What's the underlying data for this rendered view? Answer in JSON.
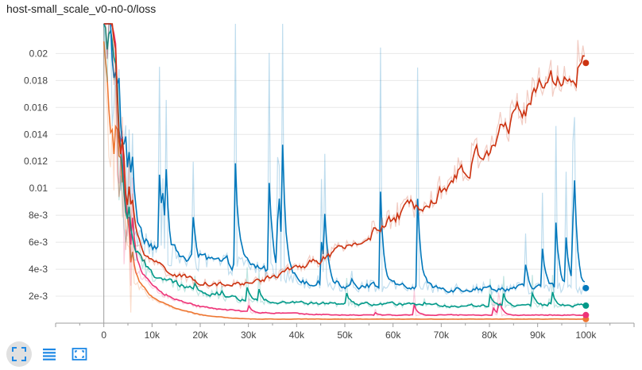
{
  "panel": {
    "title": "host-small_scale_v0-n0-0/loss"
  },
  "toolbar": {
    "buttons": [
      {
        "name": "fit-domain",
        "icon": "fit-to-data-icon",
        "active": true
      },
      {
        "name": "toggle-log-scale",
        "icon": "list-lines-icon",
        "active": false
      },
      {
        "name": "reset-zoom",
        "icon": "crop-expand-icon",
        "active": false
      }
    ],
    "accent_color": "#1e88e5"
  },
  "chart_data": {
    "type": "line",
    "xlabel": "",
    "ylabel": "",
    "xlim": [
      -10000,
      110000
    ],
    "ylim": [
      0,
      0.0222
    ],
    "x_ticks": [
      0,
      10000,
      20000,
      30000,
      40000,
      50000,
      60000,
      70000,
      80000,
      90000,
      100000
    ],
    "x_tick_labels": [
      "0",
      "10k",
      "20k",
      "30k",
      "40k",
      "50k",
      "60k",
      "70k",
      "80k",
      "90k",
      "100k"
    ],
    "y_ticks": [
      0.002,
      0.004,
      0.006,
      0.008,
      0.01,
      0.012,
      0.014,
      0.016,
      0.018,
      0.02
    ],
    "y_tick_labels": [
      "2e-3",
      "4e-3",
      "6e-3",
      "8e-3",
      "0.01",
      "0.012",
      "0.014",
      "0.016",
      "0.018",
      "0.02"
    ],
    "grid": true,
    "smoothing": true,
    "series": [
      {
        "color": "#0077bb",
        "x": [
          0,
          5000,
          10000,
          15000,
          20000,
          25000,
          30000,
          35000,
          40000,
          50000,
          60000,
          70000,
          80000,
          90000,
          100000
        ],
        "y": [
          0.022,
          0.0075,
          0.0058,
          0.0049,
          0.0046,
          0.0044,
          0.0043,
          0.0038,
          0.0032,
          0.0028,
          0.0027,
          0.0026,
          0.0026,
          0.0026,
          0.0026
        ]
      },
      {
        "color": "#cc3311",
        "x": [
          0,
          5000,
          10000,
          15000,
          20000,
          25000,
          30000,
          35000,
          40000,
          45000,
          50000,
          55000,
          60000,
          65000,
          70000,
          75000,
          80000,
          85000,
          90000,
          95000,
          100000
        ],
        "y": [
          0.022,
          0.0065,
          0.0045,
          0.0035,
          0.003,
          0.0028,
          0.003,
          0.0035,
          0.0042,
          0.0048,
          0.0056,
          0.0066,
          0.0078,
          0.009,
          0.0102,
          0.0115,
          0.0135,
          0.0152,
          0.0175,
          0.0185,
          0.0193
        ]
      },
      {
        "color": "#009988",
        "x": [
          0,
          5000,
          10000,
          15000,
          20000,
          25000,
          30000,
          40000,
          50000,
          60000,
          70000,
          80000,
          90000,
          100000
        ],
        "y": [
          0.02,
          0.0055,
          0.0035,
          0.0028,
          0.0023,
          0.0019,
          0.0017,
          0.0015,
          0.0014,
          0.0014,
          0.0013,
          0.0013,
          0.0013,
          0.0013
        ]
      },
      {
        "color": "#ee3377",
        "x": [
          0,
          5000,
          10000,
          15000,
          20000,
          25000,
          30000,
          40000,
          50000,
          60000,
          70000,
          80000,
          90000,
          100000
        ],
        "y": [
          0.022,
          0.0045,
          0.0025,
          0.0017,
          0.0012,
          0.001,
          0.0008,
          0.0007,
          0.0006,
          0.0006,
          0.0006,
          0.0006,
          0.0006,
          0.0006
        ]
      },
      {
        "color": "#ee7733",
        "x": [
          0,
          5000,
          10000,
          15000,
          20000,
          25000,
          30000,
          40000,
          50000,
          60000,
          70000,
          80000,
          90000,
          100000
        ],
        "y": [
          0.018,
          0.0035,
          0.0018,
          0.001,
          0.0006,
          0.0004,
          0.0003,
          0.0003,
          0.0003,
          0.0003,
          0.0003,
          0.0003,
          0.0003,
          0.0003
        ]
      }
    ]
  }
}
